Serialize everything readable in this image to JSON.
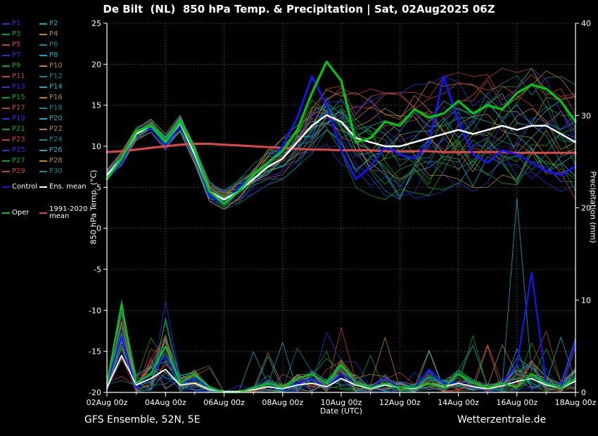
{
  "meta": {
    "title": "De Bilt  (NL)  850 hPa Temp. & Precipitation | Sat, 02Aug2025 06Z",
    "footer_left": "GFS Ensemble, 52N, 5E",
    "footer_right": "Wetterzentrale.de"
  },
  "axes": {
    "y_left_label": "850 hPa Temp. (°C)",
    "y_right_label": "Precipitation (mm)",
    "x_label": "Date (UTC)",
    "y_left_ticks": [
      -20,
      -15,
      -10,
      -5,
      0,
      5,
      10,
      15,
      20,
      25
    ],
    "y_right_ticks": [
      0,
      10,
      20,
      30,
      40
    ]
  },
  "legend": {
    "members": [
      {
        "label": "P1",
        "color": "#2830dc"
      },
      {
        "label": "P2",
        "color": "#00b4c8"
      },
      {
        "label": "P3",
        "color": "#00a81e"
      },
      {
        "label": "P4",
        "color": "#c08424"
      },
      {
        "label": "P5",
        "color": "#cc3c3c"
      },
      {
        "label": "P6",
        "color": "#008c96"
      },
      {
        "label": "P7",
        "color": "#2830dc"
      },
      {
        "label": "P8",
        "color": "#00b4c8"
      },
      {
        "label": "P9",
        "color": "#00a81e"
      },
      {
        "label": "P10",
        "color": "#c08424"
      },
      {
        "label": "P11",
        "color": "#cc3c3c"
      },
      {
        "label": "P12",
        "color": "#008c96"
      },
      {
        "label": "P13",
        "color": "#2830dc"
      },
      {
        "label": "P14",
        "color": "#00b4c8"
      },
      {
        "label": "P15",
        "color": "#00a81e"
      },
      {
        "label": "P16",
        "color": "#c08424"
      },
      {
        "label": "P17",
        "color": "#cc3c3c"
      },
      {
        "label": "P18",
        "color": "#008c96"
      },
      {
        "label": "P19",
        "color": "#2830dc"
      },
      {
        "label": "P20",
        "color": "#00b4c8"
      },
      {
        "label": "P21",
        "color": "#00a81e"
      },
      {
        "label": "P22",
        "color": "#c08424"
      },
      {
        "label": "P23",
        "color": "#cc3c3c"
      },
      {
        "label": "P24",
        "color": "#008c96"
      },
      {
        "label": "P25",
        "color": "#2830dc"
      },
      {
        "label": "P26",
        "color": "#00b4c8"
      },
      {
        "label": "P27",
        "color": "#00a81e"
      },
      {
        "label": "P28",
        "color": "#c08424"
      },
      {
        "label": "P29",
        "color": "#cc3c3c"
      },
      {
        "label": "P30",
        "color": "#008c96"
      }
    ],
    "control": {
      "label": "Control",
      "color": "#1414ff"
    },
    "ens_mean": {
      "label": "Ens. mean",
      "color": "#ffffff"
    },
    "oper": {
      "label": "Oper",
      "color": "#00c814"
    },
    "climate": {
      "label": "1991-2020 mean",
      "color": "#e04848"
    }
  },
  "chart_data": {
    "type": "line",
    "x_hours_step": 12,
    "x_count": 33,
    "x_start_label": "02Aug 00z",
    "x_tick_labels": [
      "02Aug 00z",
      "04Aug 00z",
      "06Aug 00z",
      "08Aug 00z",
      "10Aug 00z",
      "12Aug 00z",
      "14Aug 00z",
      "16Aug 00z",
      "18Aug 00z"
    ],
    "y_left_range": [
      -20,
      25
    ],
    "y_right_range": [
      0,
      40
    ],
    "member_count": 30,
    "temp_series": {
      "ens_mean": [
        6.5,
        8.5,
        11.5,
        12.5,
        10.5,
        12.8,
        9.0,
        4.5,
        3.5,
        4.5,
        6.0,
        7.5,
        8.5,
        10.5,
        12.5,
        13.8,
        13.0,
        11.0,
        10.5,
        10.0,
        10.0,
        10.5,
        11.0,
        11.5,
        12.0,
        11.5,
        12.0,
        12.5,
        12.0,
        12.5,
        12.5,
        11.5,
        10.5
      ],
      "oper": [
        6.0,
        8.5,
        11.8,
        12.5,
        10.5,
        13.0,
        9.5,
        4.5,
        3.0,
        4.5,
        6.5,
        8.0,
        9.5,
        12.0,
        16.5,
        20.3,
        18.0,
        10.5,
        11.0,
        13.0,
        12.5,
        14.5,
        13.5,
        14.0,
        15.5,
        14.0,
        15.0,
        14.5,
        16.5,
        17.5,
        17.0,
        15.5,
        13.0
      ],
      "control": [
        6.0,
        8.0,
        11.8,
        12.2,
        10.2,
        12.5,
        9.0,
        4.0,
        3.0,
        5.0,
        6.5,
        8.0,
        10.0,
        13.5,
        18.5,
        15.0,
        9.5,
        6.0,
        7.5,
        10.0,
        9.0,
        8.5,
        10.5,
        18.5,
        13.0,
        9.0,
        8.0,
        9.5,
        9.0,
        8.0,
        7.0,
        6.5,
        7.5
      ],
      "climate_1991_2020": [
        9.3,
        9.4,
        9.6,
        9.8,
        10.0,
        10.2,
        10.3,
        10.3,
        10.2,
        10.1,
        10.0,
        9.9,
        9.8,
        9.7,
        9.6,
        9.6,
        9.5,
        9.5,
        9.5,
        9.4,
        9.4,
        9.4,
        9.4,
        9.3,
        9.3,
        9.3,
        9.3,
        9.3,
        9.2,
        9.2,
        9.2,
        9.2,
        9.2
      ],
      "ensemble_spread_half_width": [
        0.8,
        0.8,
        0.8,
        0.8,
        1.0,
        1.0,
        1.2,
        1.2,
        1.2,
        1.5,
        1.8,
        2.2,
        2.5,
        3.0,
        4.5,
        5.5,
        6.0,
        6.0,
        6.5,
        6.5,
        6.5,
        7.0,
        7.0,
        7.0,
        7.0,
        7.0,
        7.0,
        7.0,
        7.0,
        7.0,
        7.0,
        7.0,
        7.0
      ]
    },
    "precip_series": {
      "ens_mean": [
        0.5,
        4.0,
        0.8,
        1.5,
        2.5,
        0.8,
        1.0,
        0.3,
        0.1,
        0.1,
        0.3,
        0.6,
        0.4,
        0.8,
        1.0,
        0.6,
        1.5,
        0.8,
        0.4,
        0.8,
        0.5,
        0.4,
        1.0,
        0.6,
        1.0,
        0.6,
        0.4,
        0.7,
        1.2,
        1.5,
        0.8,
        0.5,
        1.2
      ],
      "oper": [
        1.0,
        9.5,
        1.0,
        2.0,
        5.0,
        1.0,
        2.0,
        0.5,
        0.0,
        0.0,
        0.5,
        1.0,
        0.5,
        1.5,
        2.0,
        1.0,
        3.0,
        1.0,
        0.5,
        1.0,
        0.5,
        0.5,
        1.0,
        0.5,
        2.0,
        1.0,
        0.5,
        1.0,
        0.5,
        2.0,
        1.0,
        0.5,
        1.5
      ],
      "control": [
        1.0,
        6.0,
        0.5,
        2.0,
        4.0,
        1.0,
        1.5,
        0.5,
        0.0,
        0.0,
        0.5,
        1.0,
        0.3,
        1.0,
        1.5,
        0.5,
        2.0,
        1.0,
        0.5,
        1.5,
        0.5,
        0.5,
        2.5,
        1.0,
        1.0,
        0.5,
        0.5,
        1.0,
        3.0,
        13.0,
        1.0,
        0.5,
        5.5
      ],
      "member_spikes": [
        {
          "member": 13,
          "index": 28,
          "value": 21.0
        },
        {
          "member": 2,
          "index": 1,
          "value": 10.0
        },
        {
          "member": 7,
          "index": 4,
          "value": 8.0
        },
        {
          "member": 24,
          "index": 15,
          "value": 6.5
        },
        {
          "member": 4,
          "index": 16,
          "value": 7.0
        },
        {
          "member": 19,
          "index": 31,
          "value": 6.0
        }
      ]
    },
    "series_colors": {
      "control": "#1414ff",
      "ens_mean": "#ffffff",
      "oper": "#00c814",
      "climate": "#e04848"
    }
  }
}
